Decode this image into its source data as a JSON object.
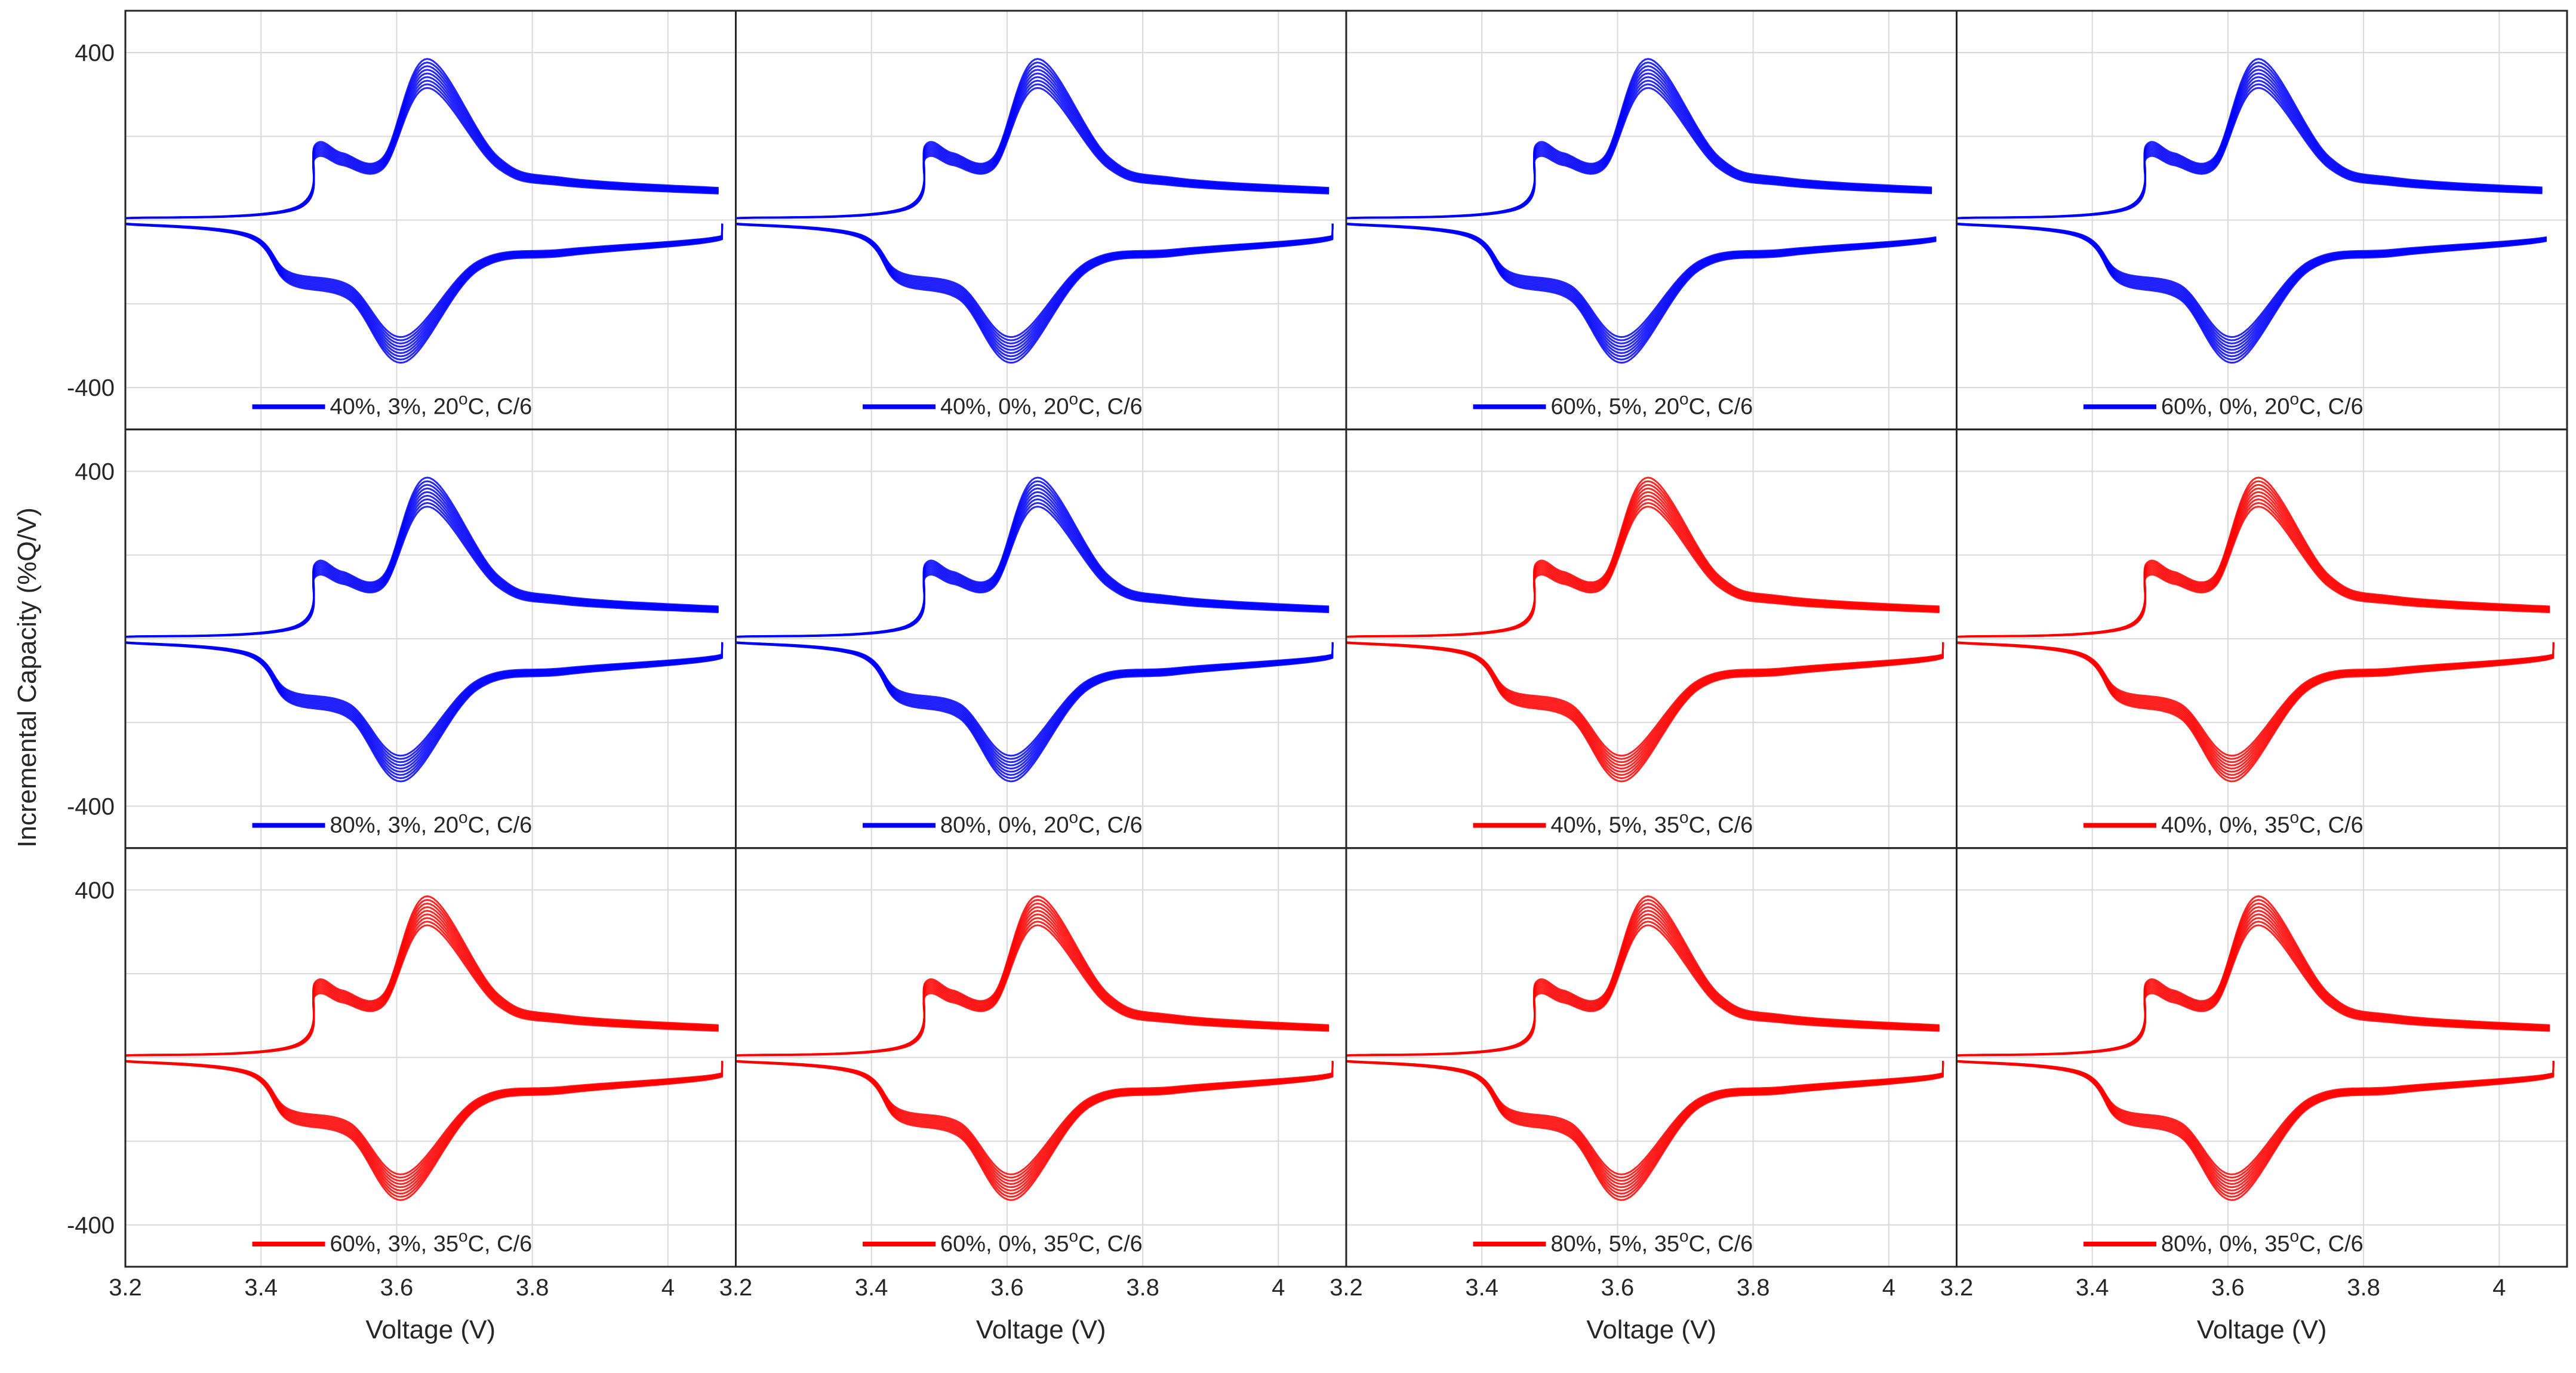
{
  "chart_data": {
    "type": "line",
    "layout": "3x4 grid of panels, shared axes",
    "xlabel": "Voltage (V)",
    "ylabel": "Incremental Capacity (%Q/V)",
    "xlim": [
      3.2,
      4.1
    ],
    "ylim": [
      -500,
      500
    ],
    "x_ticks": [
      "3.2",
      "3.4",
      "3.6",
      "3.8",
      "4"
    ],
    "y_ticks": [
      "400",
      "-400"
    ],
    "grid": true,
    "legend_placement": "bottom-center of each panel",
    "colors": {
      "20C": "#0000ff",
      "35C": "#ff0000",
      "axes": "#262626",
      "grid": "#d9d9d9"
    },
    "charge_branch_peaks": [
      {
        "x": 3.2,
        "y": 5
      },
      {
        "x": 3.45,
        "y": 30
      },
      {
        "x": 3.48,
        "y": 180
      },
      {
        "x": 3.52,
        "y": 160
      },
      {
        "x": 3.58,
        "y": 150
      },
      {
        "x": 3.645,
        "y": 385
      },
      {
        "x": 3.75,
        "y": 150
      },
      {
        "x": 3.85,
        "y": 100
      },
      {
        "x": 4.1,
        "y": 75
      }
    ],
    "discharge_branch_peaks": [
      {
        "x": 3.2,
        "y": -10
      },
      {
        "x": 3.38,
        "y": -40
      },
      {
        "x": 3.44,
        "y": -150
      },
      {
        "x": 3.53,
        "y": -190
      },
      {
        "x": 3.61,
        "y": -340
      },
      {
        "x": 3.72,
        "y": -120
      },
      {
        "x": 3.85,
        "y": -85
      },
      {
        "x": 4.07,
        "y": -50
      },
      {
        "x": 4.08,
        "y": -10
      }
    ],
    "panels": [
      {
        "legend": "40%, 3%, 20",
        "unit_suffix": "C, C/6",
        "temperature": "20C",
        "max_v": 4.08
      },
      {
        "legend": "40%, 0%, 20",
        "unit_suffix": "C, C/6",
        "temperature": "20C",
        "max_v": 4.08
      },
      {
        "legend": "60%, 5%, 20",
        "unit_suffix": "C, C/6",
        "temperature": "20C",
        "max_v": 4.07
      },
      {
        "legend": "60%, 0%, 20",
        "unit_suffix": "C, C/6",
        "temperature": "20C",
        "max_v": 4.07
      },
      {
        "legend": "80%, 3%, 20",
        "unit_suffix": "C, C/6",
        "temperature": "20C",
        "max_v": 4.08
      },
      {
        "legend": "80%, 0%, 20",
        "unit_suffix": "C, C/6",
        "temperature": "20C",
        "max_v": 4.08
      },
      {
        "legend": "40%, 5%, 35",
        "unit_suffix": "C, C/6",
        "temperature": "35C",
        "max_v": 4.08
      },
      {
        "legend": "40%, 0%, 35",
        "unit_suffix": "C, C/6",
        "temperature": "35C",
        "max_v": 4.08
      },
      {
        "legend": "60%, 3%, 35",
        "unit_suffix": "C, C/6",
        "temperature": "35C",
        "max_v": 4.08
      },
      {
        "legend": "60%, 0%, 35",
        "unit_suffix": "C, C/6",
        "temperature": "35C",
        "max_v": 4.08
      },
      {
        "legend": "80%, 5%, 35",
        "unit_suffix": "C, C/6",
        "temperature": "35C",
        "max_v": 4.08
      },
      {
        "legend": "80%, 0%, 35",
        "unit_suffix": "C, C/6",
        "temperature": "35C",
        "max_v": 4.08
      }
    ]
  }
}
